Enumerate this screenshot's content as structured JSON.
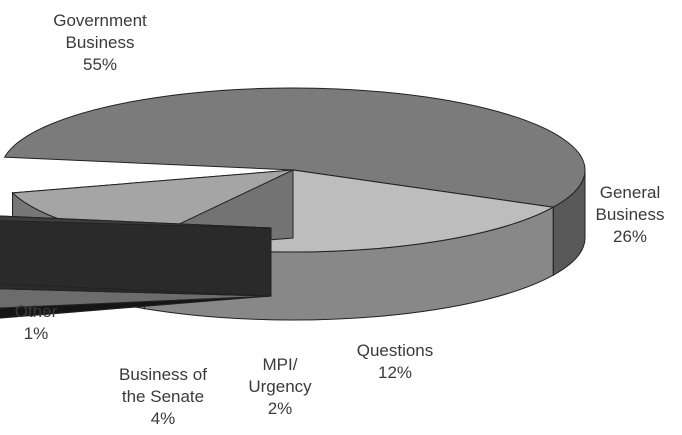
{
  "chart_data": {
    "type": "pie",
    "style": "3d-exploded",
    "slices": [
      {
        "name": "Government Business",
        "label_lines": [
          "Government",
          "Business"
        ],
        "percent_label": "55%",
        "value": 55,
        "color": "#7b7b7b",
        "exploded": false
      },
      {
        "name": "General Business",
        "label_lines": [
          "General",
          "Business"
        ],
        "percent_label": "26%",
        "value": 26,
        "color": "#bdbdbd",
        "exploded": false
      },
      {
        "name": "Questions",
        "label_lines": [
          "Questions"
        ],
        "percent_label": "12%",
        "value": 12,
        "color": "#a5a5a5",
        "exploded": false
      },
      {
        "name": "MPI/ Urgency",
        "label_lines": [
          "MPI/",
          "Urgency"
        ],
        "percent_label": "2%",
        "value": 2,
        "color": "#1e1e1e",
        "exploded": true
      },
      {
        "name": "Business of the Senate",
        "label_lines": [
          "Business of",
          "the Senate"
        ],
        "percent_label": "4%",
        "value": 4,
        "color": "#ffffff",
        "exploded": true
      },
      {
        "name": "Other",
        "label_lines": [
          "Other"
        ],
        "percent_label": "1%",
        "value": 1,
        "color": "#3c3c3c",
        "exploded": true
      }
    ]
  }
}
